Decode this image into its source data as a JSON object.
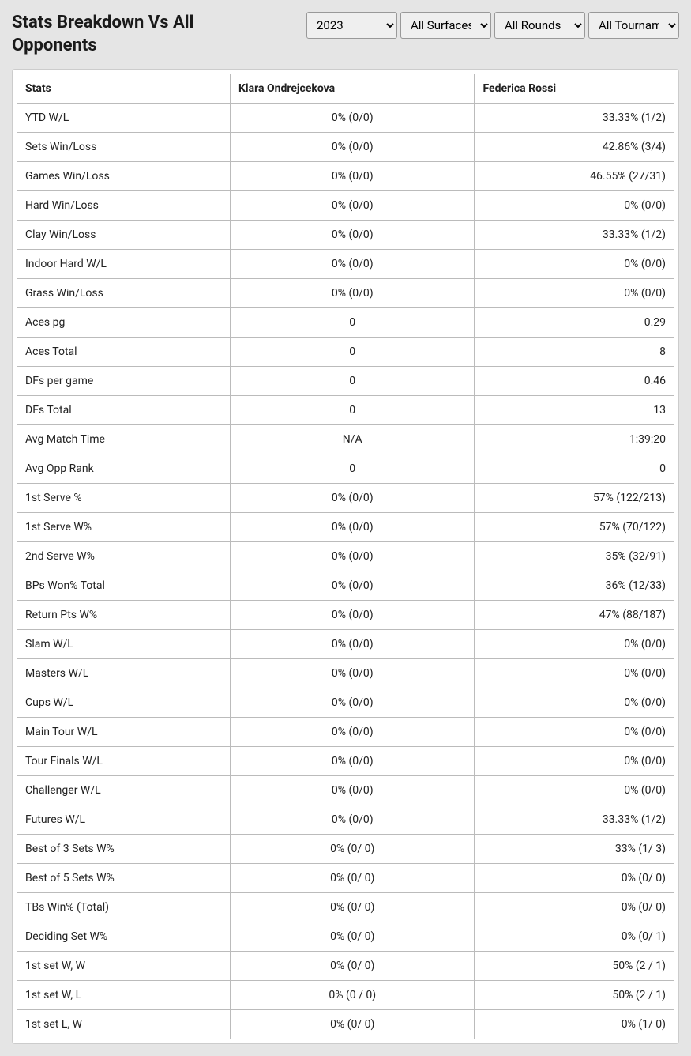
{
  "title": "Stats Breakdown Vs All Opponents",
  "filters": {
    "year": "2023",
    "surface": "All Surfaces",
    "round": "All Rounds",
    "tournament": "All Tournaments"
  },
  "columns": {
    "stats": "Stats",
    "player1": "Klara Ondrejcekova",
    "player2": "Federica Rossi"
  },
  "rows": [
    {
      "label": "YTD W/L",
      "p1": "0% (0/0)",
      "p2": "33.33% (1/2)"
    },
    {
      "label": "Sets Win/Loss",
      "p1": "0% (0/0)",
      "p2": "42.86% (3/4)"
    },
    {
      "label": "Games Win/Loss",
      "p1": "0% (0/0)",
      "p2": "46.55% (27/31)"
    },
    {
      "label": "Hard Win/Loss",
      "p1": "0% (0/0)",
      "p2": "0% (0/0)"
    },
    {
      "label": "Clay Win/Loss",
      "p1": "0% (0/0)",
      "p2": "33.33% (1/2)"
    },
    {
      "label": "Indoor Hard W/L",
      "p1": "0% (0/0)",
      "p2": "0% (0/0)"
    },
    {
      "label": "Grass Win/Loss",
      "p1": "0% (0/0)",
      "p2": "0% (0/0)"
    },
    {
      "label": "Aces pg",
      "p1": "0",
      "p2": "0.29"
    },
    {
      "label": "Aces Total",
      "p1": "0",
      "p2": "8"
    },
    {
      "label": "DFs per game",
      "p1": "0",
      "p2": "0.46"
    },
    {
      "label": "DFs Total",
      "p1": "0",
      "p2": "13"
    },
    {
      "label": "Avg Match Time",
      "p1": "N/A",
      "p2": "1:39:20"
    },
    {
      "label": "Avg Opp Rank",
      "p1": "0",
      "p2": "0"
    },
    {
      "label": "1st Serve %",
      "p1": "0% (0/0)",
      "p2": "57% (122/213)"
    },
    {
      "label": "1st Serve W%",
      "p1": "0% (0/0)",
      "p2": "57% (70/122)"
    },
    {
      "label": "2nd Serve W%",
      "p1": "0% (0/0)",
      "p2": "35% (32/91)"
    },
    {
      "label": "BPs Won% Total",
      "p1": "0% (0/0)",
      "p2": "36% (12/33)"
    },
    {
      "label": "Return Pts W%",
      "p1": "0% (0/0)",
      "p2": "47% (88/187)"
    },
    {
      "label": "Slam W/L",
      "p1": "0% (0/0)",
      "p2": "0% (0/0)"
    },
    {
      "label": "Masters W/L",
      "p1": "0% (0/0)",
      "p2": "0% (0/0)"
    },
    {
      "label": "Cups W/L",
      "p1": "0% (0/0)",
      "p2": "0% (0/0)"
    },
    {
      "label": "Main Tour W/L",
      "p1": "0% (0/0)",
      "p2": "0% (0/0)"
    },
    {
      "label": "Tour Finals W/L",
      "p1": "0% (0/0)",
      "p2": "0% (0/0)"
    },
    {
      "label": "Challenger W/L",
      "p1": "0% (0/0)",
      "p2": "0% (0/0)"
    },
    {
      "label": "Futures W/L",
      "p1": "0% (0/0)",
      "p2": "33.33% (1/2)"
    },
    {
      "label": "Best of 3 Sets W%",
      "p1": "0% (0/ 0)",
      "p2": "33% (1/ 3)"
    },
    {
      "label": "Best of 5 Sets W%",
      "p1": "0% (0/ 0)",
      "p2": "0% (0/ 0)"
    },
    {
      "label": "TBs Win% (Total)",
      "p1": "0% (0/ 0)",
      "p2": "0% (0/ 0)"
    },
    {
      "label": "Deciding Set W%",
      "p1": "0% (0/ 0)",
      "p2": "0% (0/ 1)"
    },
    {
      "label": "1st set W, W",
      "p1": "0% (0/ 0)",
      "p2": "50% (2 / 1)"
    },
    {
      "label": "1st set W, L",
      "p1": "0% (0 / 0)",
      "p2": "50% (2 / 1)"
    },
    {
      "label": "1st set L, W",
      "p1": "0% (0/ 0)",
      "p2": "0% (1/ 0)"
    }
  ]
}
